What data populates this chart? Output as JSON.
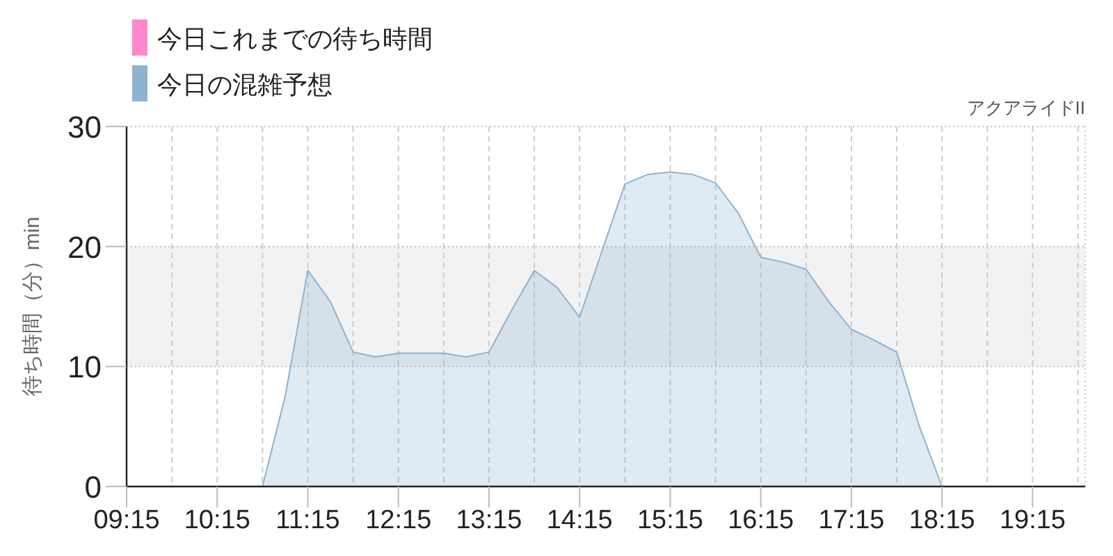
{
  "chart_data": {
    "type": "area",
    "title": "アクアライドII",
    "ylabel": "待ち時間（分）min",
    "x": [
      9.25,
      9.75,
      10.25,
      10.62,
      10.75,
      11.0,
      11.25,
      11.5,
      11.75,
      12.0,
      12.25,
      12.5,
      12.75,
      13.0,
      13.25,
      13.5,
      13.75,
      14.0,
      14.25,
      14.5,
      14.75,
      15.0,
      15.25,
      15.5,
      15.75,
      16.0,
      16.25,
      16.5,
      16.75,
      17.0,
      17.25,
      17.5,
      17.75,
      18.0,
      18.25,
      18.5,
      18.75,
      19.25,
      19.83
    ],
    "series": [
      {
        "name": "今日これまでの待ち時間",
        "color": "#ff88cc",
        "values": [
          null,
          null,
          null,
          null,
          null,
          null,
          null,
          null,
          null,
          null,
          null,
          null,
          null,
          null,
          null,
          null,
          null,
          null,
          null,
          null,
          null,
          null,
          null,
          null,
          null,
          null,
          null,
          null,
          null,
          null,
          null,
          null,
          null,
          null,
          null,
          null,
          null,
          null,
          null
        ]
      },
      {
        "name": "今日の混雑予想",
        "color": "#8eb3d1",
        "values": [
          0,
          0,
          0,
          0,
          0,
          7.5,
          18.0,
          15.4,
          11.2,
          10.8,
          11.1,
          11.1,
          11.1,
          10.8,
          11.2,
          14.7,
          18.0,
          16.6,
          14.1,
          19.7,
          25.2,
          26.0,
          26.2,
          26.0,
          25.3,
          22.8,
          19.1,
          18.7,
          18.1,
          15.4,
          13.1,
          12.2,
          11.2,
          5.0,
          0,
          0,
          0,
          0,
          0
        ]
      }
    ],
    "xlim": [
      9.25,
      19.83
    ],
    "ylim": [
      0,
      30
    ],
    "xticks": [
      {
        "value": 9.25,
        "label": "09:15"
      },
      {
        "value": 9.75,
        "label": null
      },
      {
        "value": 10.25,
        "label": "10:15"
      },
      {
        "value": 10.75,
        "label": null
      },
      {
        "value": 11.25,
        "label": "11:15"
      },
      {
        "value": 11.75,
        "label": null
      },
      {
        "value": 12.25,
        "label": "12:15"
      },
      {
        "value": 12.75,
        "label": null
      },
      {
        "value": 13.25,
        "label": "13:15"
      },
      {
        "value": 13.75,
        "label": null
      },
      {
        "value": 14.25,
        "label": "14:15"
      },
      {
        "value": 14.75,
        "label": null
      },
      {
        "value": 15.25,
        "label": "15:15"
      },
      {
        "value": 15.75,
        "label": null
      },
      {
        "value": 16.25,
        "label": "16:15"
      },
      {
        "value": 16.75,
        "label": null
      },
      {
        "value": 17.25,
        "label": "17:15"
      },
      {
        "value": 17.75,
        "label": null
      },
      {
        "value": 18.25,
        "label": "18:15"
      },
      {
        "value": 18.75,
        "label": null
      },
      {
        "value": 19.25,
        "label": "19:15"
      },
      {
        "value": 19.75,
        "label": null
      }
    ],
    "yticks": [
      0,
      10,
      20,
      30
    ],
    "bands": [
      {
        "axis": "y",
        "from": 10,
        "to": 20,
        "color": "#f2f2f2"
      }
    ],
    "grid": true,
    "legend": "top left"
  }
}
